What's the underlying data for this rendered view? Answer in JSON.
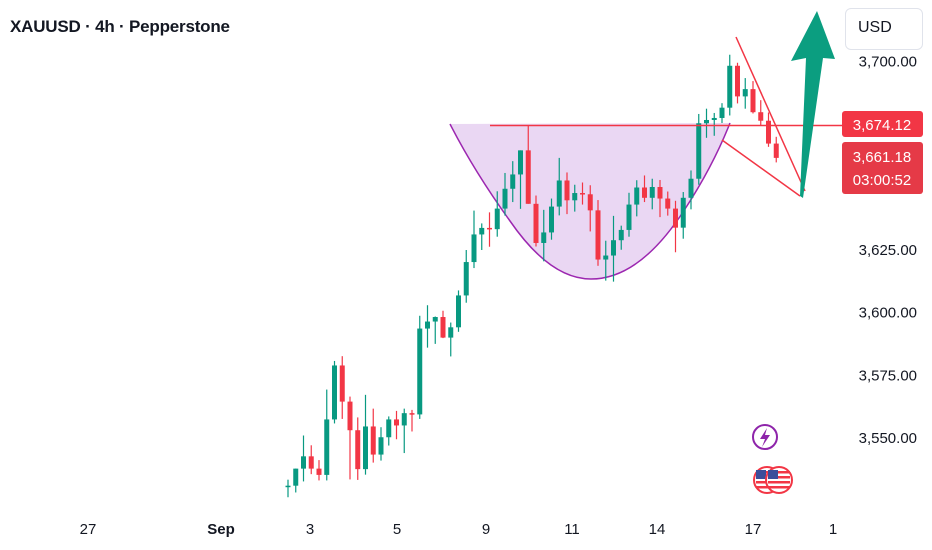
{
  "header": {
    "title": "XAUUSD · 4h · Pepperstone",
    "currency_button": "USD"
  },
  "colors": {
    "up": "#089981",
    "down": "#F23645",
    "pattern_fill": "#EAD7F3",
    "pattern_stroke": "#9C27B0",
    "arrow": "#0B9E80",
    "resistance": "#F23645",
    "badge_price": "#F23645",
    "badge_current": "#E53A47"
  },
  "price_badges": {
    "resistance": "3,674.12",
    "current": "3,661.18",
    "countdown": "03:00:52"
  },
  "event_icons": [
    "lightning-icon",
    "us-flag-icon",
    "us-flag-icon"
  ],
  "chart_data": {
    "type": "candlestick",
    "title": "XAUUSD · 4h · Pepperstone",
    "y_axis": {
      "ticks": [
        3550,
        3575,
        3600,
        3625,
        3700
      ],
      "tick_labels": [
        "3,550.00",
        "3,575.00",
        "3,600.00",
        "3,625.00",
        "3,700.00"
      ]
    },
    "x_axis": {
      "tick_labels": [
        "27",
        "Sep",
        "3",
        "5",
        "9",
        "11",
        "14",
        "17",
        "1"
      ]
    },
    "candles": [
      [
        3530.0,
        3533.0,
        3526.0,
        3530.6
      ],
      [
        3530.6,
        3537.4,
        3527.9,
        3537.4
      ],
      [
        3537.4,
        3550.6,
        3532.3,
        3542.3
      ],
      [
        3542.3,
        3546.7,
        3535.2,
        3537.4
      ],
      [
        3537.4,
        3540.8,
        3532.7,
        3534.9
      ],
      [
        3534.9,
        3568.9,
        3532.7,
        3557.0
      ],
      [
        3557.0,
        3580.3,
        3555.4,
        3578.5
      ],
      [
        3578.5,
        3582.2,
        3557.2,
        3564.1
      ],
      [
        3564.1,
        3566.1,
        3533.1,
        3552.7
      ],
      [
        3552.7,
        3557.8,
        3532.9,
        3537.2
      ],
      [
        3537.2,
        3566.8,
        3535.0,
        3554.2
      ],
      [
        3554.2,
        3561.3,
        3539.8,
        3543.0
      ],
      [
        3543.0,
        3553.9,
        3540.6,
        3549.9
      ],
      [
        3549.9,
        3558.2,
        3546.6,
        3557.0
      ],
      [
        3557.0,
        3560.4,
        3549.1,
        3554.6
      ],
      [
        3554.6,
        3561.3,
        3543.6,
        3559.5
      ],
      [
        3559.5,
        3560.8,
        3552.2,
        3559.0
      ],
      [
        3559.0,
        3598.3,
        3557.2,
        3593.2
      ],
      [
        3593.2,
        3602.5,
        3585.6,
        3596.0
      ],
      [
        3596.0,
        3598.0,
        3587.1,
        3597.8
      ],
      [
        3597.8,
        3600.3,
        3589.4,
        3589.6
      ],
      [
        3589.6,
        3595.6,
        3582.1,
        3593.7
      ],
      [
        3593.7,
        3608.4,
        3591.9,
        3606.4
      ],
      [
        3606.4,
        3624.5,
        3603.5,
        3619.7
      ],
      [
        3619.7,
        3640.2,
        3617.3,
        3630.7
      ],
      [
        3630.7,
        3635.1,
        3624.5,
        3633.3
      ],
      [
        3633.3,
        3639.5,
        3625.8,
        3632.8
      ],
      [
        3632.8,
        3647.9,
        3629.8,
        3641.0
      ],
      [
        3641.0,
        3655.2,
        3638.2,
        3648.9
      ],
      [
        3648.9,
        3659.9,
        3643.6,
        3654.6
      ],
      [
        3654.6,
        3664.2,
        3640.9,
        3664.2
      ],
      [
        3664.2,
        3674.1,
        3642.9,
        3642.9
      ],
      [
        3642.9,
        3646.2,
        3625.9,
        3627.3
      ],
      [
        3627.3,
        3640.5,
        3620.0,
        3631.5
      ],
      [
        3631.5,
        3645.0,
        3628.6,
        3641.8
      ],
      [
        3641.8,
        3661.2,
        3638.3,
        3652.2
      ],
      [
        3652.2,
        3655.4,
        3638.8,
        3644.3
      ],
      [
        3644.3,
        3650.5,
        3639.8,
        3647.2
      ],
      [
        3647.2,
        3651.4,
        3642.6,
        3646.7
      ],
      [
        3646.7,
        3650.3,
        3631.9,
        3640.3
      ],
      [
        3640.3,
        3644.4,
        3618.2,
        3620.7
      ],
      [
        3620.7,
        3628.2,
        3612.3,
        3622.3
      ],
      [
        3622.3,
        3638.1,
        3611.9,
        3628.4
      ],
      [
        3628.4,
        3634.2,
        3624.6,
        3632.5
      ],
      [
        3632.5,
        3647.3,
        3629.8,
        3642.6
      ],
      [
        3642.6,
        3652.3,
        3637.9,
        3649.4
      ],
      [
        3649.4,
        3654.2,
        3643.6,
        3645.3
      ],
      [
        3645.3,
        3652.9,
        3640.7,
        3649.6
      ],
      [
        3649.6,
        3652.4,
        3637.6,
        3645.0
      ],
      [
        3645.0,
        3647.8,
        3638.2,
        3641.0
      ],
      [
        3641.0,
        3644.1,
        3623.6,
        3633.4
      ],
      [
        3633.4,
        3647.6,
        3629.0,
        3645.3
      ],
      [
        3645.3,
        3656.2,
        3640.7,
        3652.9
      ],
      [
        3652.9,
        3678.7,
        3650.5,
        3675.0
      ],
      [
        3675.0,
        3680.8,
        3669.2,
        3676.3
      ],
      [
        3676.3,
        3679.1,
        3670.0,
        3677.1
      ],
      [
        3677.1,
        3683.0,
        3675.1,
        3681.2
      ],
      [
        3681.2,
        3702.3,
        3678.1,
        3697.9
      ],
      [
        3697.9,
        3699.1,
        3682.9,
        3685.7
      ],
      [
        3685.7,
        3693.0,
        3680.8,
        3688.6
      ],
      [
        3688.6,
        3691.8,
        3678.9,
        3679.4
      ],
      [
        3679.4,
        3684.2,
        3674.1,
        3676.0
      ],
      [
        3676.0,
        3679.3,
        3665.6,
        3666.9
      ],
      [
        3666.9,
        3669.6,
        3659.4,
        3661.2
      ]
    ]
  }
}
